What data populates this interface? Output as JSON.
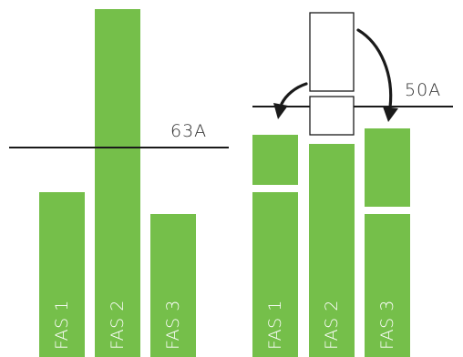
{
  "left_panel": {
    "limit_label": "63A",
    "phases": [
      {
        "label": "FAS 1",
        "relative_load": 0.72
      },
      {
        "label": "FAS 2",
        "relative_load": 1.45
      },
      {
        "label": "FAS 3",
        "relative_load": 0.6
      }
    ]
  },
  "right_panel": {
    "limit_label": "50A",
    "phases": [
      {
        "label": "FAS 1"
      },
      {
        "label": "FAS 2"
      },
      {
        "label": "FAS 3"
      }
    ]
  },
  "colors": {
    "bar": "#75bf4a",
    "line": "#1a1a1a",
    "label": "#2a2a2a"
  }
}
